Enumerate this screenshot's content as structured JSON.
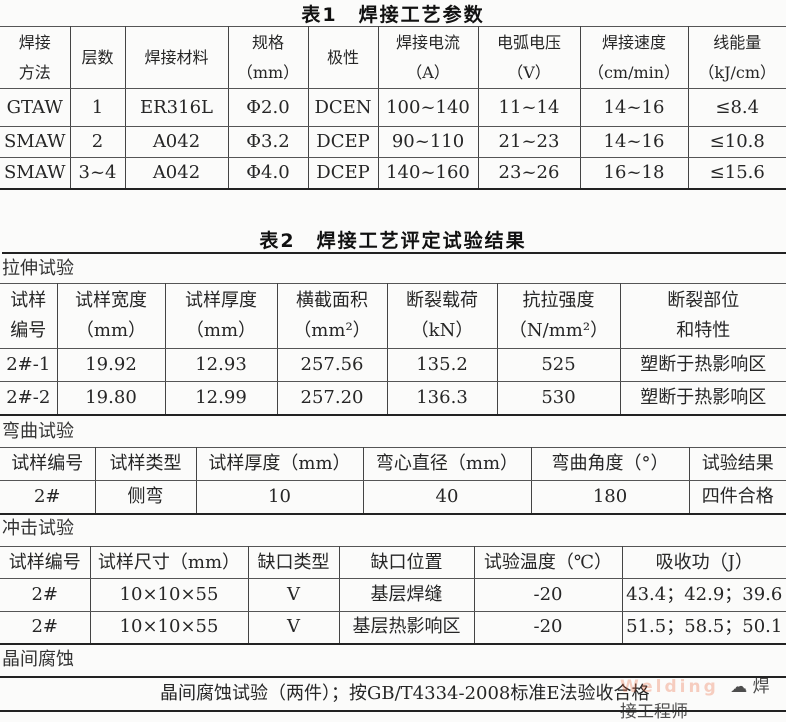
{
  "table1": {
    "title": "表1　焊接工艺参数",
    "header": [
      "焊接\n方法",
      "层数",
      "焊接材料",
      "规格\n（mm）",
      "极性",
      "焊接电流\n（A）",
      "电弧电压\n（V）",
      "焊接速度\n（cm/min）",
      "线能量\n（kJ/cm）"
    ],
    "rows": [
      [
        "GTAW",
        "1",
        "ER316L",
        "Φ2.0",
        "DCEN",
        "100~140",
        "11~14",
        "14~16",
        "≤8.4"
      ],
      [
        "SMAW",
        "2",
        "A042",
        "Φ3.2",
        "DCEP",
        "90~110",
        "21~23",
        "14~16",
        "≤10.8"
      ],
      [
        "SMAW",
        "3~4",
        "A042",
        "Φ4.0",
        "DCEP",
        "140~160",
        "23~26",
        "16~18",
        "≤15.6"
      ]
    ]
  },
  "table2": {
    "title": "表2　焊接工艺评定试验结果",
    "tensile": {
      "label": "拉伸试验",
      "header": [
        "试样\n编号",
        "试样宽度\n（mm）",
        "试样厚度\n（mm）",
        "横截面积\n（mm²）",
        "断裂载荷\n（kN）",
        "抗拉强度\n（N/mm²）",
        "断裂部位\n和特性"
      ],
      "rows": [
        [
          "2#-1",
          "19.92",
          "12.93",
          "257.56",
          "135.2",
          "525",
          "塑断于热影响区"
        ],
        [
          "2#-2",
          "19.80",
          "12.99",
          "257.20",
          "136.3",
          "530",
          "塑断于热影响区"
        ]
      ]
    },
    "bend": {
      "label": "弯曲试验",
      "header": [
        "试样编号",
        "试样类型",
        "试样厚度（mm）",
        "弯心直径（mm）",
        "弯曲角度（°）",
        "试验结果"
      ],
      "rows": [
        [
          "2#",
          "侧弯",
          "10",
          "40",
          "180",
          "四件合格"
        ]
      ]
    },
    "impact": {
      "label": "冲击试验",
      "header": [
        "试样编号",
        "试样尺寸（mm）",
        "缺口类型",
        "缺口位置",
        "试验温度（℃）",
        "吸收功（J）"
      ],
      "rows": [
        [
          "2#",
          "10×10×55",
          "V",
          "基层焊缝",
          "-20",
          "43.4；42.9；39.6"
        ],
        [
          "2#",
          "10×10×55",
          "V",
          "基层热影响区",
          "-20",
          "51.5；58.5；50.1"
        ]
      ]
    },
    "corrosion": {
      "label": "晶间腐蚀",
      "text": "晶间腐蚀试验（两件）；按GB/T4334-2008标准E法验收合格"
    }
  },
  "watermark": {
    "brand": "Welding",
    "account": "焊接工程师"
  }
}
